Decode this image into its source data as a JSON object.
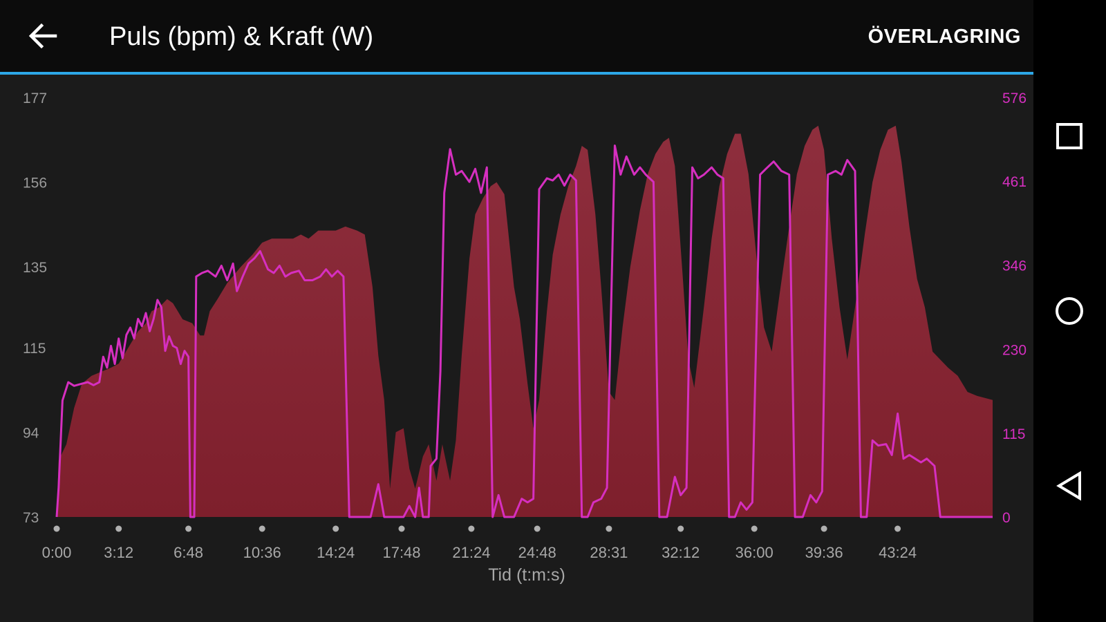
{
  "header": {
    "title": "Puls (bpm) & Kraft (W)",
    "overlay_label": "ÖVERLAGRING",
    "back_icon": "arrow-left-icon"
  },
  "nav_bar": {
    "recents_icon": "square-icon",
    "home_icon": "circle-icon",
    "back_icon": "triangle-back-icon"
  },
  "colors": {
    "heart_rate_fill": "#7e1f2c",
    "power_line": "#d62fc0",
    "accent": "#2da8e8",
    "background": "#1b1b1b"
  },
  "chart_data": {
    "type": "area",
    "xlabel": "Tid (t:m:s)",
    "x_ticks": [
      "0:00",
      "3:12",
      "6:48",
      "10:36",
      "14:24",
      "17:48",
      "21:24",
      "24:48",
      "28:31",
      "32:12",
      "36:00",
      "39:36",
      "43:24"
    ],
    "x_tick_minutes": [
      0,
      3.2,
      6.8,
      10.6,
      14.4,
      17.8,
      21.4,
      24.8,
      28.5,
      32.2,
      36.0,
      39.6,
      43.4
    ],
    "x_range_minutes": [
      0,
      48.3
    ],
    "y_left": {
      "ticks": [
        "73",
        "94",
        "115",
        "135",
        "156",
        "177"
      ],
      "range": [
        73,
        177
      ]
    },
    "y_right": {
      "ticks": [
        "0",
        "115",
        "230",
        "346",
        "461",
        "576"
      ],
      "range": [
        0,
        576
      ]
    },
    "grid": false,
    "series": [
      {
        "axis": "left",
        "style": "area",
        "points": [
          [
            0,
            73
          ],
          [
            0.1,
            87
          ],
          [
            0.5,
            91
          ],
          [
            0.9,
            100
          ],
          [
            1.3,
            106
          ],
          [
            1.8,
            108
          ],
          [
            2.3,
            109
          ],
          [
            2.8,
            110
          ],
          [
            3.2,
            111
          ],
          [
            3.7,
            115
          ],
          [
            4.2,
            119
          ],
          [
            4.6,
            121
          ],
          [
            4.9,
            124
          ],
          [
            5.3,
            125
          ],
          [
            5.7,
            127
          ],
          [
            6.0,
            126
          ],
          [
            6.5,
            122
          ],
          [
            7.0,
            121
          ],
          [
            7.4,
            118
          ],
          [
            7.6,
            118
          ],
          [
            7.9,
            124
          ],
          [
            8.3,
            127
          ],
          [
            8.8,
            131
          ],
          [
            9.5,
            135
          ],
          [
            10.1,
            138
          ],
          [
            10.6,
            141
          ],
          [
            11.1,
            142
          ],
          [
            11.7,
            142
          ],
          [
            12.2,
            142
          ],
          [
            12.6,
            143
          ],
          [
            13.0,
            142
          ],
          [
            13.5,
            144
          ],
          [
            13.9,
            144
          ],
          [
            14.4,
            144
          ],
          [
            14.9,
            145
          ],
          [
            15.5,
            144
          ],
          [
            15.9,
            143
          ],
          [
            16.3,
            130
          ],
          [
            16.6,
            113
          ],
          [
            16.9,
            102
          ],
          [
            17.2,
            80
          ],
          [
            17.5,
            94
          ],
          [
            17.9,
            95
          ],
          [
            18.2,
            85
          ],
          [
            18.5,
            80
          ],
          [
            18.9,
            88
          ],
          [
            19.2,
            91
          ],
          [
            19.6,
            82
          ],
          [
            19.9,
            91
          ],
          [
            20.3,
            82
          ],
          [
            20.6,
            92
          ],
          [
            20.9,
            113
          ],
          [
            21.3,
            137
          ],
          [
            21.6,
            148
          ],
          [
            22.0,
            152
          ],
          [
            22.4,
            155
          ],
          [
            22.7,
            156
          ],
          [
            23.1,
            153
          ],
          [
            23.6,
            130
          ],
          [
            23.9,
            122
          ],
          [
            24.3,
            106
          ],
          [
            24.6,
            95
          ],
          [
            24.9,
            102
          ],
          [
            25.3,
            124
          ],
          [
            25.6,
            138
          ],
          [
            26.0,
            148
          ],
          [
            26.4,
            155
          ],
          [
            26.8,
            160
          ],
          [
            27.1,
            165
          ],
          [
            27.4,
            164
          ],
          [
            27.8,
            148
          ],
          [
            28.1,
            130
          ],
          [
            28.5,
            104
          ],
          [
            28.8,
            102
          ],
          [
            29.2,
            120
          ],
          [
            29.6,
            135
          ],
          [
            30.1,
            149
          ],
          [
            30.5,
            158
          ],
          [
            30.9,
            163
          ],
          [
            31.3,
            166
          ],
          [
            31.6,
            167
          ],
          [
            31.9,
            160
          ],
          [
            32.3,
            133
          ],
          [
            32.6,
            112
          ],
          [
            32.9,
            105
          ],
          [
            33.4,
            125
          ],
          [
            33.8,
            142
          ],
          [
            34.2,
            155
          ],
          [
            34.6,
            163
          ],
          [
            35.0,
            168
          ],
          [
            35.3,
            168
          ],
          [
            35.7,
            158
          ],
          [
            36.1,
            138
          ],
          [
            36.5,
            120
          ],
          [
            36.9,
            114
          ],
          [
            37.3,
            128
          ],
          [
            37.8,
            145
          ],
          [
            38.2,
            158
          ],
          [
            38.6,
            165
          ],
          [
            39.0,
            169
          ],
          [
            39.3,
            170
          ],
          [
            39.6,
            164
          ],
          [
            40.0,
            142
          ],
          [
            40.4,
            125
          ],
          [
            40.8,
            112
          ],
          [
            41.2,
            125
          ],
          [
            41.7,
            143
          ],
          [
            42.1,
            156
          ],
          [
            42.5,
            164
          ],
          [
            42.9,
            169
          ],
          [
            43.3,
            170
          ],
          [
            43.6,
            161
          ],
          [
            44.0,
            145
          ],
          [
            44.4,
            132
          ],
          [
            44.8,
            125
          ],
          [
            45.2,
            114
          ],
          [
            45.6,
            112
          ],
          [
            46.0,
            110
          ],
          [
            46.5,
            108
          ],
          [
            47.0,
            104
          ],
          [
            47.5,
            103
          ],
          [
            48.3,
            102
          ]
        ]
      },
      {
        "axis": "right",
        "style": "line",
        "points": [
          [
            0,
            0
          ],
          [
            0.1,
            40
          ],
          [
            0.3,
            160
          ],
          [
            0.6,
            185
          ],
          [
            0.9,
            180
          ],
          [
            1.3,
            183
          ],
          [
            1.6,
            185
          ],
          [
            1.9,
            181
          ],
          [
            2.2,
            185
          ],
          [
            2.4,
            220
          ],
          [
            2.6,
            205
          ],
          [
            2.8,
            235
          ],
          [
            3.0,
            210
          ],
          [
            3.2,
            245
          ],
          [
            3.4,
            218
          ],
          [
            3.6,
            250
          ],
          [
            3.8,
            260
          ],
          [
            4.0,
            245
          ],
          [
            4.2,
            272
          ],
          [
            4.4,
            262
          ],
          [
            4.6,
            280
          ],
          [
            4.8,
            255
          ],
          [
            5.0,
            272
          ],
          [
            5.2,
            298
          ],
          [
            5.4,
            288
          ],
          [
            5.6,
            228
          ],
          [
            5.8,
            248
          ],
          [
            6.0,
            235
          ],
          [
            6.2,
            232
          ],
          [
            6.4,
            210
          ],
          [
            6.6,
            228
          ],
          [
            6.8,
            220
          ],
          [
            6.9,
            0
          ],
          [
            7.1,
            0
          ],
          [
            7.2,
            330
          ],
          [
            7.5,
            335
          ],
          [
            7.8,
            338
          ],
          [
            8.2,
            330
          ],
          [
            8.5,
            345
          ],
          [
            8.8,
            325
          ],
          [
            9.1,
            348
          ],
          [
            9.3,
            310
          ],
          [
            9.6,
            330
          ],
          [
            9.9,
            348
          ],
          [
            10.2,
            355
          ],
          [
            10.5,
            365
          ],
          [
            10.9,
            340
          ],
          [
            11.2,
            335
          ],
          [
            11.5,
            345
          ],
          [
            11.8,
            330
          ],
          [
            12.1,
            335
          ],
          [
            12.5,
            338
          ],
          [
            12.8,
            325
          ],
          [
            13.2,
            325
          ],
          [
            13.6,
            330
          ],
          [
            13.9,
            340
          ],
          [
            14.2,
            330
          ],
          [
            14.5,
            338
          ],
          [
            14.8,
            330
          ],
          [
            15.1,
            0
          ],
          [
            15.9,
            0
          ],
          [
            16.2,
            0
          ],
          [
            16.6,
            45
          ],
          [
            16.9,
            0
          ],
          [
            17.3,
            0
          ],
          [
            17.6,
            0
          ],
          [
            17.9,
            0
          ],
          [
            18.2,
            15
          ],
          [
            18.5,
            0
          ],
          [
            18.7,
            40
          ],
          [
            18.9,
            0
          ],
          [
            19.2,
            0
          ],
          [
            19.3,
            70
          ],
          [
            19.6,
            80
          ],
          [
            19.8,
            200
          ],
          [
            20.0,
            445
          ],
          [
            20.3,
            505
          ],
          [
            20.6,
            470
          ],
          [
            20.9,
            475
          ],
          [
            21.3,
            460
          ],
          [
            21.6,
            478
          ],
          [
            21.9,
            445
          ],
          [
            22.2,
            480
          ],
          [
            22.5,
            0
          ],
          [
            22.8,
            30
          ],
          [
            23.1,
            0
          ],
          [
            23.6,
            0
          ],
          [
            24.0,
            25
          ],
          [
            24.3,
            20
          ],
          [
            24.6,
            25
          ],
          [
            24.9,
            450
          ],
          [
            25.3,
            465
          ],
          [
            25.6,
            462
          ],
          [
            25.9,
            470
          ],
          [
            26.2,
            455
          ],
          [
            26.5,
            470
          ],
          [
            26.8,
            462
          ],
          [
            27.1,
            0
          ],
          [
            27.4,
            0
          ],
          [
            27.7,
            20
          ],
          [
            28.1,
            25
          ],
          [
            28.4,
            40
          ],
          [
            28.8,
            510
          ],
          [
            29.1,
            470
          ],
          [
            29.4,
            495
          ],
          [
            29.8,
            470
          ],
          [
            30.1,
            480
          ],
          [
            30.4,
            470
          ],
          [
            30.8,
            460
          ],
          [
            31.1,
            0
          ],
          [
            31.5,
            0
          ],
          [
            31.9,
            55
          ],
          [
            32.2,
            30
          ],
          [
            32.5,
            40
          ],
          [
            32.8,
            480
          ],
          [
            33.1,
            465
          ],
          [
            33.4,
            470
          ],
          [
            33.8,
            480
          ],
          [
            34.1,
            470
          ],
          [
            34.4,
            465
          ],
          [
            34.7,
            0
          ],
          [
            35.0,
            0
          ],
          [
            35.3,
            20
          ],
          [
            35.6,
            10
          ],
          [
            35.9,
            20
          ],
          [
            36.3,
            470
          ],
          [
            36.6,
            478
          ],
          [
            37.0,
            488
          ],
          [
            37.4,
            475
          ],
          [
            37.8,
            470
          ],
          [
            38.1,
            0
          ],
          [
            38.5,
            0
          ],
          [
            38.9,
            30
          ],
          [
            39.2,
            20
          ],
          [
            39.5,
            35
          ],
          [
            39.8,
            470
          ],
          [
            40.2,
            475
          ],
          [
            40.5,
            470
          ],
          [
            40.8,
            490
          ],
          [
            41.2,
            475
          ],
          [
            41.5,
            0
          ],
          [
            41.8,
            0
          ],
          [
            42.1,
            105
          ],
          [
            42.4,
            98
          ],
          [
            42.8,
            100
          ],
          [
            43.1,
            85
          ],
          [
            43.4,
            142
          ],
          [
            43.7,
            80
          ],
          [
            44.0,
            85
          ],
          [
            44.3,
            80
          ],
          [
            44.6,
            75
          ],
          [
            44.9,
            80
          ],
          [
            45.3,
            70
          ],
          [
            45.6,
            0
          ],
          [
            48.3,
            0
          ]
        ]
      }
    ]
  }
}
